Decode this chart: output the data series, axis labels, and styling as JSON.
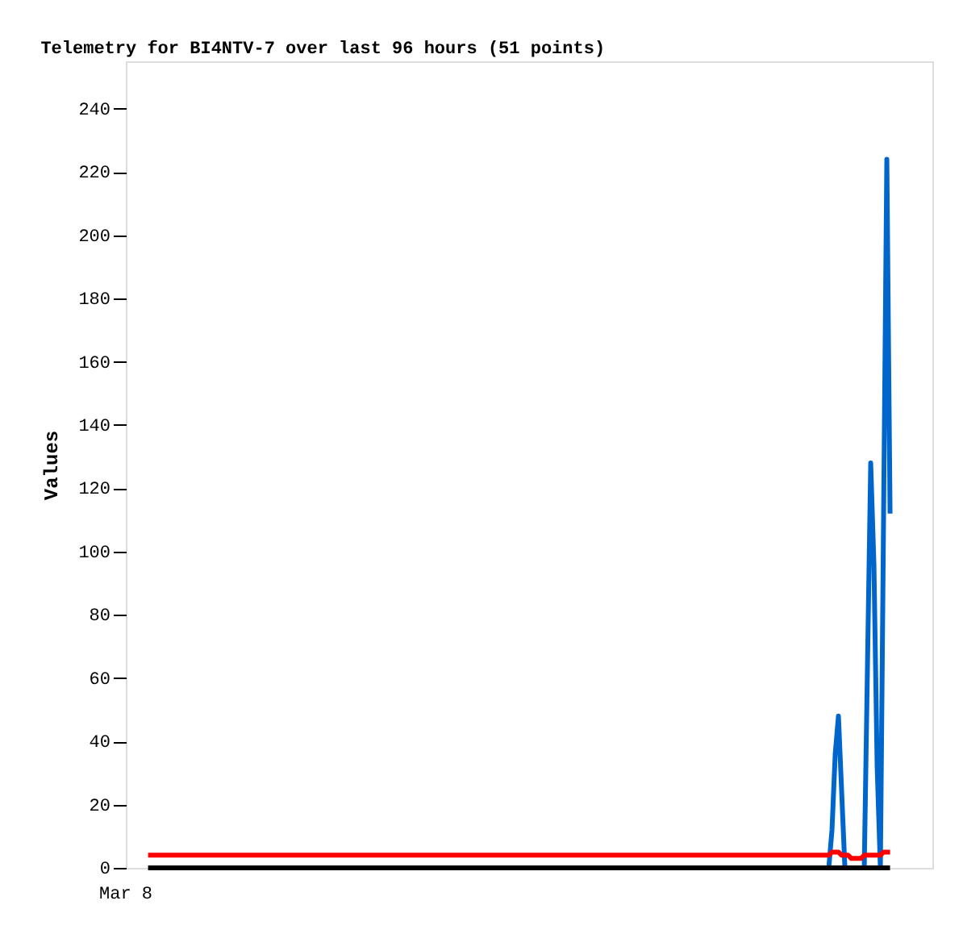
{
  "chart_data": {
    "type": "line",
    "title": "Telemetry for BI4NTV-7 over last 96 hours (51 points)",
    "ylabel": "Values",
    "annotations": [
      "Mar 8"
    ],
    "ylim": [
      0,
      255
    ],
    "yticks": [
      0,
      20,
      40,
      60,
      80,
      100,
      120,
      140,
      160,
      180,
      200,
      220,
      240
    ],
    "grid": false,
    "marker": "none",
    "line_style": "solid",
    "categories": [
      null,
      null,
      null,
      null,
      null,
      null,
      null,
      null,
      null,
      null,
      null,
      null,
      null,
      null,
      null,
      null,
      null,
      null,
      null,
      null,
      null,
      null,
      null,
      null,
      null,
      null,
      null,
      null,
      null,
      null,
      null,
      null,
      null,
      null,
      null,
      null,
      null,
      null,
      null,
      null,
      null,
      null,
      null,
      null,
      null,
      null,
      null,
      null,
      null,
      null,
      null,
      null,
      null,
      null,
      null,
      null,
      null,
      null,
      null,
      null,
      null,
      null,
      null,
      null,
      null,
      null,
      null,
      null,
      null,
      null,
      null,
      null,
      null,
      null,
      null,
      null,
      null,
      null,
      null,
      null,
      null,
      null,
      null,
      null,
      null,
      null,
      null,
      null,
      null,
      null,
      null,
      null,
      null,
      null,
      null,
      null,
      null,
      null,
      null,
      null,
      null,
      null,
      null,
      null,
      null,
      null,
      null,
      null,
      null,
      null,
      null,
      null,
      null,
      null,
      null,
      null,
      null,
      null,
      null,
      null,
      null,
      null,
      null,
      null,
      null,
      null,
      null,
      null,
      null,
      null,
      null,
      null,
      null,
      null,
      null,
      null,
      null,
      null,
      null,
      null,
      null,
      null,
      null,
      null,
      null,
      null,
      null,
      null,
      null,
      null,
      null,
      null,
      null,
      null,
      null,
      null,
      null,
      null,
      null,
      null,
      null,
      null,
      null,
      null,
      null,
      null,
      null,
      null,
      null,
      null,
      null,
      null,
      null,
      null,
      null,
      null,
      null,
      null,
      null,
      null,
      null,
      null,
      null,
      null,
      null,
      null,
      null,
      null,
      null,
      null,
      null,
      null,
      null,
      null,
      null,
      null,
      null,
      null,
      null,
      null,
      null,
      null,
      null,
      null,
      null,
      null,
      null,
      null,
      null,
      null,
      null,
      null,
      null,
      null,
      null,
      null,
      null,
      null,
      null,
      null,
      null,
      null,
      null,
      null,
      null,
      null,
      null,
      null,
      null,
      null,
      null
    ],
    "series": [
      {
        "color": "#0066cc",
        "values": [
          null,
          null,
          null,
          null,
          null,
          null,
          null,
          null,
          null,
          null,
          null,
          null,
          null,
          null,
          null,
          null,
          null,
          null,
          null,
          null,
          null,
          null,
          null,
          null,
          null,
          null,
          null,
          null,
          null,
          null,
          null,
          null,
          null,
          null,
          null,
          null,
          null,
          null,
          null,
          null,
          null,
          null,
          null,
          null,
          null,
          null,
          null,
          null,
          null,
          null,
          null,
          null,
          null,
          null,
          null,
          null,
          null,
          null,
          null,
          null,
          null,
          null,
          null,
          null,
          null,
          null,
          null,
          null,
          null,
          null,
          null,
          null,
          null,
          null,
          null,
          null,
          null,
          null,
          null,
          null,
          null,
          null,
          null,
          null,
          null,
          null,
          null,
          null,
          null,
          null,
          null,
          null,
          null,
          null,
          null,
          null,
          null,
          null,
          null,
          null,
          null,
          null,
          null,
          null,
          null,
          null,
          null,
          null,
          null,
          null,
          null,
          null,
          null,
          null,
          null,
          null,
          null,
          null,
          null,
          null,
          null,
          null,
          null,
          null,
          null,
          null,
          null,
          null,
          null,
          null,
          null,
          null,
          null,
          null,
          null,
          null,
          null,
          null,
          null,
          null,
          null,
          null,
          null,
          null,
          null,
          null,
          null,
          null,
          null,
          null,
          null,
          null,
          null,
          null,
          null,
          null,
          null,
          null,
          null,
          null,
          null,
          null,
          null,
          null,
          null,
          null,
          null,
          null,
          null,
          null,
          null,
          null,
          null,
          null,
          null,
          null,
          null,
          null,
          null,
          null,
          null,
          null,
          null,
          null,
          null,
          null,
          null,
          null,
          null,
          null,
          null,
          null,
          null,
          null,
          null,
          null,
          null,
          null,
          null,
          null,
          null,
          null,
          null,
          null,
          null,
          null,
          null,
          null,
          null,
          null,
          null,
          0,
          12,
          36,
          48,
          24,
          0,
          null,
          null,
          null,
          null,
          null,
          0,
          64,
          128,
          96,
          32,
          0,
          112,
          224,
          112
        ]
      },
      {
        "color": "#000000",
        "values": [
          0,
          0,
          0,
          0,
          0,
          0,
          0,
          0,
          0,
          0,
          0,
          0,
          0,
          0,
          0,
          0,
          0,
          0,
          0,
          0,
          0,
          0,
          0,
          0,
          0,
          0,
          0,
          0,
          0,
          0,
          0,
          0,
          0,
          0,
          0,
          0,
          0,
          0,
          0,
          0,
          0,
          0,
          0,
          0,
          0,
          0,
          0,
          0,
          0,
          0,
          0,
          0,
          0,
          0,
          0,
          0,
          0,
          0,
          0,
          0,
          0,
          0,
          0,
          0,
          0,
          0,
          0,
          0,
          0,
          0,
          0,
          0,
          0,
          0,
          0,
          0,
          0,
          0,
          0,
          0,
          0,
          0,
          0,
          0,
          0,
          0,
          0,
          0,
          0,
          0,
          0,
          0,
          0,
          0,
          0,
          0,
          0,
          0,
          0,
          0,
          0,
          0,
          0,
          0,
          0,
          0,
          0,
          0,
          0,
          0,
          0,
          0,
          0,
          0,
          0,
          0,
          0,
          0,
          0,
          0,
          0,
          0,
          0,
          0,
          0,
          0,
          0,
          0,
          0,
          0,
          0,
          0,
          0,
          0,
          0,
          0,
          0,
          0,
          0,
          0,
          0,
          0,
          0,
          0,
          0,
          0,
          0,
          0,
          0,
          0,
          0,
          0,
          0,
          0,
          0,
          0,
          0,
          0,
          0,
          0,
          0,
          0,
          0,
          0,
          0,
          0,
          0,
          0,
          0,
          0,
          0,
          0,
          0,
          0,
          0,
          0,
          0,
          0,
          0,
          0,
          0,
          0,
          0,
          0,
          0,
          0,
          0,
          0,
          0,
          0,
          0,
          0,
          0,
          0,
          0,
          0,
          0,
          0,
          0,
          0,
          0,
          0,
          0,
          0,
          0,
          0,
          0,
          0,
          0,
          0,
          0,
          0,
          0,
          0,
          0,
          0,
          0,
          0,
          0,
          0,
          0,
          0,
          0,
          0,
          0,
          0,
          0,
          0,
          0,
          0,
          0
        ]
      },
      {
        "color": "#ff0000",
        "values": [
          4,
          4,
          4,
          4,
          4,
          4,
          4,
          4,
          4,
          4,
          4,
          4,
          4,
          4,
          4,
          4,
          4,
          4,
          4,
          4,
          4,
          4,
          4,
          4,
          4,
          4,
          4,
          4,
          4,
          4,
          4,
          4,
          4,
          4,
          4,
          4,
          4,
          4,
          4,
          4,
          4,
          4,
          4,
          4,
          4,
          4,
          4,
          4,
          4,
          4,
          4,
          4,
          4,
          4,
          4,
          4,
          4,
          4,
          4,
          4,
          4,
          4,
          4,
          4,
          4,
          4,
          4,
          4,
          4,
          4,
          4,
          4,
          4,
          4,
          4,
          4,
          4,
          4,
          4,
          4,
          4,
          4,
          4,
          4,
          4,
          4,
          4,
          4,
          4,
          4,
          4,
          4,
          4,
          4,
          4,
          4,
          4,
          4,
          4,
          4,
          4,
          4,
          4,
          4,
          4,
          4,
          4,
          4,
          4,
          4,
          4,
          4,
          4,
          4,
          4,
          4,
          4,
          4,
          4,
          4,
          4,
          4,
          4,
          4,
          4,
          4,
          4,
          4,
          4,
          4,
          4,
          4,
          4,
          4,
          4,
          4,
          4,
          4,
          4,
          4,
          4,
          4,
          4,
          4,
          4,
          4,
          4,
          4,
          4,
          4,
          4,
          4,
          4,
          4,
          4,
          4,
          4,
          4,
          4,
          4,
          4,
          4,
          4,
          4,
          4,
          4,
          4,
          4,
          4,
          4,
          4,
          4,
          4,
          4,
          4,
          4,
          4,
          4,
          4,
          4,
          4,
          4,
          4,
          4,
          4,
          4,
          4,
          4,
          4,
          4,
          4,
          4,
          4,
          4,
          4,
          4,
          4,
          4,
          4,
          4,
          4,
          4,
          4,
          4,
          4,
          4,
          4,
          4,
          4,
          4,
          4,
          4,
          5,
          5,
          5,
          4,
          4,
          4,
          3,
          3,
          3,
          3,
          4,
          4,
          4,
          4,
          4,
          4,
          5,
          5,
          5
        ]
      }
    ]
  }
}
